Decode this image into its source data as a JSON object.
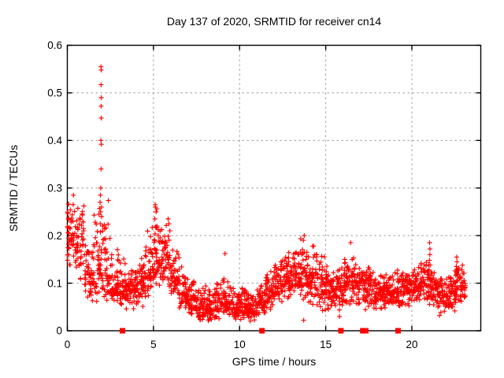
{
  "chart_data": {
    "type": "scatter",
    "title": "Day 137 of 2020, SRMTID for receiver cn14",
    "xlabel": "GPS time / hours",
    "ylabel": "SRMTID / TECUs",
    "xlim": [
      0,
      24
    ],
    "ylim": [
      0,
      0.6
    ],
    "xticks": [
      0,
      5,
      10,
      15,
      20
    ],
    "xtick_labels": [
      "0",
      "5",
      "10",
      "15",
      "20"
    ],
    "yticks": [
      0,
      0.1,
      0.2,
      0.3,
      0.4,
      0.5,
      0.6
    ],
    "ytick_labels": [
      "0",
      "0.1",
      "0.2",
      "0.3",
      "0.4",
      "0.5",
      "0.6"
    ],
    "grid": true,
    "legend": "none",
    "marker": "plus",
    "marker_color": "#ff0000",
    "grid_color": "#9e9e9e",
    "border_color": "#000000",
    "background_color": "#ffffff",
    "sampling_note": "dense 30s-cadence scatter; envelope per time bin [hour_start, hour_end, y_min, y_max, y_typical]",
    "points_per_hour": 100,
    "seed": 137,
    "envelope_bins": [
      [
        0.0,
        0.5,
        0.12,
        0.285,
        0.21
      ],
      [
        0.5,
        1.0,
        0.1,
        0.27,
        0.18
      ],
      [
        1.0,
        1.5,
        0.06,
        0.19,
        0.12
      ],
      [
        1.5,
        2.0,
        0.05,
        0.3,
        0.13
      ],
      [
        2.0,
        2.5,
        0.06,
        0.28,
        0.12
      ],
      [
        2.5,
        3.0,
        0.05,
        0.18,
        0.09
      ],
      [
        3.0,
        3.5,
        0.04,
        0.16,
        0.08
      ],
      [
        3.5,
        4.0,
        0.04,
        0.15,
        0.09
      ],
      [
        4.0,
        4.5,
        0.04,
        0.16,
        0.09
      ],
      [
        4.5,
        5.0,
        0.06,
        0.22,
        0.12
      ],
      [
        5.0,
        5.5,
        0.09,
        0.265,
        0.15
      ],
      [
        5.5,
        6.0,
        0.08,
        0.235,
        0.14
      ],
      [
        6.0,
        6.5,
        0.06,
        0.18,
        0.11
      ],
      [
        6.5,
        7.0,
        0.04,
        0.14,
        0.08
      ],
      [
        7.0,
        7.5,
        0.03,
        0.12,
        0.06
      ],
      [
        7.5,
        8.0,
        0.02,
        0.1,
        0.05
      ],
      [
        8.0,
        8.5,
        0.015,
        0.1,
        0.045
      ],
      [
        8.5,
        9.0,
        0.02,
        0.11,
        0.055
      ],
      [
        9.0,
        9.5,
        0.03,
        0.12,
        0.06
      ],
      [
        9.5,
        10.0,
        0.02,
        0.1,
        0.05
      ],
      [
        10.0,
        10.5,
        0.02,
        0.09,
        0.05
      ],
      [
        10.5,
        11.0,
        0.015,
        0.08,
        0.045
      ],
      [
        11.0,
        11.5,
        0.03,
        0.1,
        0.06
      ],
      [
        11.5,
        12.0,
        0.04,
        0.13,
        0.08
      ],
      [
        12.0,
        12.5,
        0.05,
        0.15,
        0.1
      ],
      [
        12.5,
        13.0,
        0.06,
        0.17,
        0.11
      ],
      [
        13.0,
        13.5,
        0.06,
        0.19,
        0.12
      ],
      [
        13.5,
        14.0,
        0.05,
        0.2,
        0.12
      ],
      [
        14.0,
        14.5,
        0.05,
        0.18,
        0.11
      ],
      [
        14.5,
        15.0,
        0.03,
        0.17,
        0.1
      ],
      [
        15.0,
        15.5,
        0.04,
        0.15,
        0.09
      ],
      [
        15.5,
        16.0,
        0.04,
        0.14,
        0.09
      ],
      [
        16.0,
        16.5,
        0.05,
        0.16,
        0.1
      ],
      [
        16.5,
        17.0,
        0.05,
        0.165,
        0.1
      ],
      [
        17.0,
        17.5,
        0.04,
        0.14,
        0.09
      ],
      [
        17.5,
        18.0,
        0.04,
        0.145,
        0.08
      ],
      [
        18.0,
        18.5,
        0.04,
        0.12,
        0.08
      ],
      [
        18.5,
        19.0,
        0.05,
        0.125,
        0.08
      ],
      [
        19.0,
        19.5,
        0.04,
        0.13,
        0.085
      ],
      [
        19.5,
        20.0,
        0.05,
        0.13,
        0.09
      ],
      [
        20.0,
        20.5,
        0.05,
        0.135,
        0.09
      ],
      [
        20.5,
        21.0,
        0.05,
        0.15,
        0.095
      ],
      [
        21.0,
        21.5,
        0.04,
        0.14,
        0.09
      ],
      [
        21.5,
        22.0,
        0.03,
        0.12,
        0.075
      ],
      [
        22.0,
        22.5,
        0.04,
        0.125,
        0.08
      ],
      [
        22.5,
        23.1,
        0.05,
        0.145,
        0.095
      ]
    ],
    "notable_points": [
      [
        0.35,
        0.285
      ],
      [
        1.95,
        0.555
      ],
      [
        1.97,
        0.548
      ],
      [
        1.96,
        0.517
      ],
      [
        1.97,
        0.49
      ],
      [
        1.96,
        0.472
      ],
      [
        1.97,
        0.447
      ],
      [
        1.95,
        0.4
      ],
      [
        1.97,
        0.392
      ],
      [
        1.96,
        0.34
      ],
      [
        1.94,
        0.3
      ],
      [
        1.92,
        0.285
      ],
      [
        1.9,
        0.27
      ],
      [
        1.98,
        0.26
      ],
      [
        1.93,
        0.25
      ],
      [
        1.99,
        0.24
      ],
      [
        1.91,
        0.225
      ],
      [
        5.1,
        0.265
      ],
      [
        5.12,
        0.26
      ],
      [
        5.15,
        0.25
      ],
      [
        5.08,
        0.235
      ],
      [
        5.2,
        0.22
      ],
      [
        5.85,
        0.235
      ],
      [
        5.9,
        0.225
      ],
      [
        5.95,
        0.21
      ],
      [
        9.15,
        0.162
      ],
      [
        13.75,
        0.2
      ],
      [
        13.7,
        0.19
      ],
      [
        13.9,
        0.165
      ],
      [
        14.3,
        0.178
      ],
      [
        13.72,
        0.022
      ],
      [
        15.8,
        0.03
      ],
      [
        16.45,
        0.185
      ],
      [
        16.1,
        0.15
      ],
      [
        21.03,
        0.185
      ],
      [
        21.05,
        0.172
      ],
      [
        21.04,
        0.16
      ],
      [
        21.02,
        0.148
      ],
      [
        21.06,
        0.138
      ],
      [
        21.0,
        0.128
      ],
      [
        22.6,
        0.155
      ],
      [
        22.62,
        0.145
      ],
      [
        22.58,
        0.135
      ],
      [
        22.62,
        0.125
      ]
    ],
    "baseline_markers": {
      "marker": "filled-square",
      "color": "#ff0000",
      "y": 0,
      "x": [
        {
          "x": 3.2,
          "narrow": false
        },
        {
          "x": 11.3,
          "narrow": false
        },
        {
          "x": 15.88,
          "narrow": false
        },
        {
          "x": 17.15,
          "narrow": false
        },
        {
          "x": 17.3,
          "narrow": true
        },
        {
          "x": 17.42,
          "narrow": true
        },
        {
          "x": 19.2,
          "narrow": false
        }
      ]
    }
  }
}
